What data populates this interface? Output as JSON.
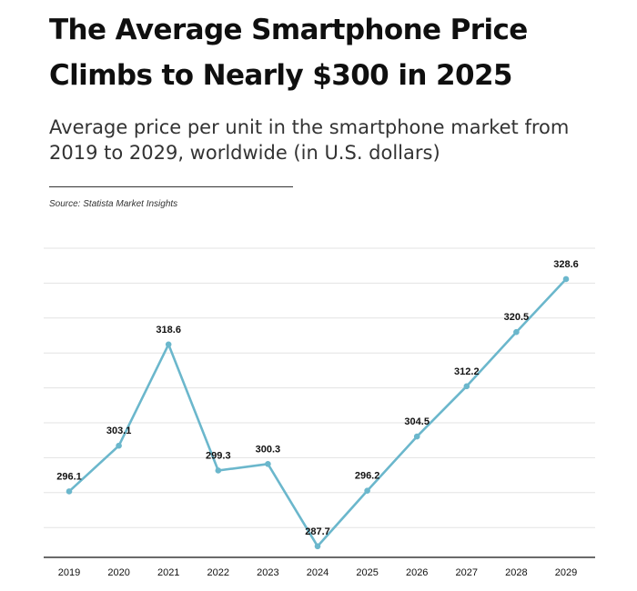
{
  "header": {
    "title": "The Average Smartphone Price Climbs to Nearly $300 in 2025",
    "subtitle": "Average price per unit in the smartphone market from 2019 to 2029, worldwide (in U.S. dollars)",
    "source": "Source: Statista Market Insights"
  },
  "colors": {
    "line": "#6bb7cc",
    "grid": "#e3e3e3",
    "axis": "#111111"
  },
  "chart_data": {
    "type": "line",
    "title": "The Average Smartphone Price Climbs to Nearly $300 in 2025",
    "xlabel": "",
    "ylabel": "",
    "grid": true,
    "categories": [
      "2019",
      "2020",
      "2021",
      "2022",
      "2023",
      "2024",
      "2025",
      "2026",
      "2027",
      "2028",
      "2029"
    ],
    "series": [
      {
        "name": "Average price per unit (US$)",
        "values": [
          296.1,
          303.1,
          318.6,
          299.3,
          300.3,
          287.7,
          296.2,
          304.5,
          312.2,
          320.5,
          328.6
        ]
      }
    ],
    "ylim": [
      286,
      335
    ]
  }
}
